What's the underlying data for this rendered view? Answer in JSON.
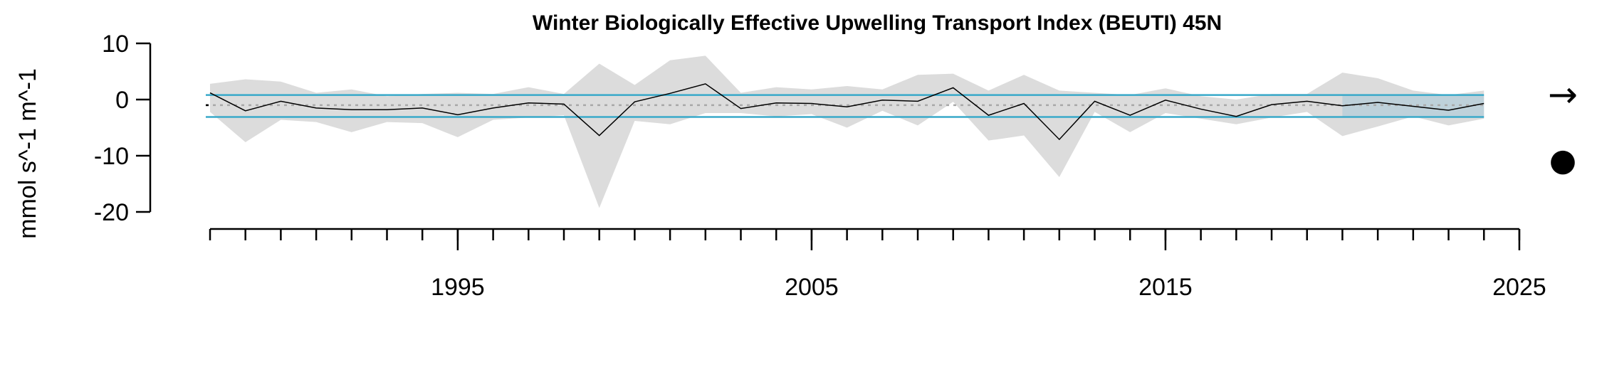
{
  "chart_data": {
    "type": "line",
    "title": "Winter Biologically Effective Upwelling Transport Index (BEUTI) 45N",
    "ylabel": "mmol s^-1 m^-1",
    "xlabel": "",
    "ylim": [
      -20,
      10
    ],
    "xlim": [
      1988,
      2025
    ],
    "yticks": [
      10,
      0,
      -10,
      -20
    ],
    "xticks_labeled": [
      1995,
      2005,
      2015,
      2025
    ],
    "x": [
      1988,
      1989,
      1990,
      1991,
      1992,
      1993,
      1994,
      1995,
      1996,
      1997,
      1998,
      1999,
      2000,
      2001,
      2002,
      2003,
      2004,
      2005,
      2006,
      2007,
      2008,
      2009,
      2010,
      2011,
      2012,
      2013,
      2014,
      2015,
      2016,
      2017,
      2018,
      2019,
      2020,
      2021,
      2022,
      2023,
      2024
    ],
    "series": [
      {
        "values": [
          1.2,
          -2.0,
          -0.3,
          -1.5,
          -1.8,
          -1.8,
          -1.5,
          -2.7,
          -1.5,
          -0.6,
          -0.8,
          -6.4,
          -0.4,
          1.1,
          2.8,
          -1.6,
          -0.6,
          -0.7,
          -1.3,
          -0.1,
          -0.3,
          2.1,
          -2.8,
          -0.7,
          -7.1,
          -0.3,
          -2.8,
          -0.1,
          -1.7,
          -3.0,
          -0.9,
          -0.3,
          -1.1,
          -0.5,
          -1.2,
          -1.9,
          -0.7
        ],
        "upper": [
          2.8,
          3.6,
          3.2,
          1.2,
          1.8,
          0.6,
          1.0,
          1.2,
          1.0,
          2.2,
          1.0,
          6.4,
          2.6,
          7.0,
          7.8,
          1.2,
          2.2,
          1.8,
          2.4,
          1.8,
          4.4,
          4.6,
          1.6,
          4.4,
          1.6,
          1.2,
          0.8,
          2.0,
          0.6,
          0.0,
          1.0,
          1.0,
          4.8,
          3.8,
          1.6,
          0.8,
          1.6
        ],
        "lower": [
          -2.2,
          -7.6,
          -3.6,
          -4.0,
          -5.8,
          -4.0,
          -4.2,
          -6.7,
          -3.6,
          -3.2,
          -2.8,
          -19.3,
          -3.8,
          -4.4,
          -2.4,
          -2.4,
          -3.0,
          -2.6,
          -5.0,
          -2.0,
          -4.6,
          -0.4,
          -7.3,
          -6.4,
          -13.8,
          -2.2,
          -5.8,
          -2.4,
          -3.4,
          -4.4,
          -3.2,
          -2.2,
          -6.5,
          -4.8,
          -3.0,
          -4.6,
          -3.4
        ]
      }
    ],
    "mean": -1.0,
    "sd_upper": 0.8,
    "sd_lower": -3.1,
    "recent_window": [
      2020,
      2024
    ],
    "trend_symbol": "→",
    "mean_symbol": "●",
    "colors": {
      "band": "#dcdcdc",
      "sd_line": "#39a9c9",
      "mean_line": "#a8a8a8",
      "recent_shade": "#b8cfd9",
      "series_line": "#000000"
    }
  }
}
